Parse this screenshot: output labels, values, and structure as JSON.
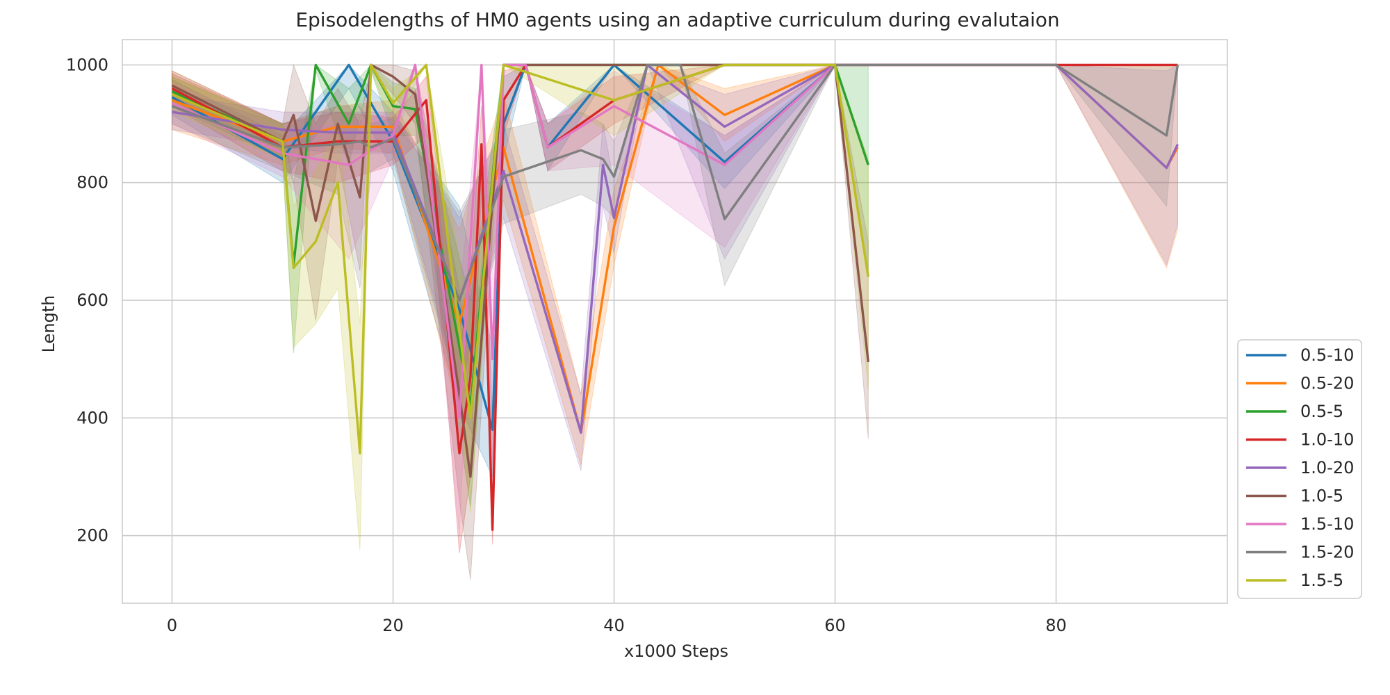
{
  "chart_data": {
    "type": "line",
    "title": "Episodelengths of HM0 agents using an adaptive curriculum during evalutaion",
    "xlabel": "x1000 Steps",
    "ylabel": "Length",
    "xlim": [
      -4.5,
      95.5
    ],
    "ylim": [
      85,
      1043
    ],
    "xticks": [
      0,
      20,
      40,
      60,
      80
    ],
    "yticks": [
      200,
      400,
      600,
      800,
      1000
    ],
    "grid": true,
    "legend_position": "lower-right outside",
    "series": [
      {
        "name": "0.5-10",
        "color": "#1f77b4",
        "points": [
          [
            0,
            945
          ],
          [
            10,
            840
          ],
          [
            16,
            1000
          ],
          [
            20,
            870
          ],
          [
            26,
            585
          ],
          [
            29,
            380
          ],
          [
            30,
            900
          ],
          [
            32,
            1000
          ],
          [
            34,
            860
          ],
          [
            40,
            1000
          ],
          [
            50,
            835
          ],
          [
            60,
            1000
          ]
        ],
        "band": [
          [
            0,
            975,
            915
          ],
          [
            10,
            880,
            800
          ],
          [
            16,
            1000,
            960
          ],
          [
            20,
            920,
            820
          ],
          [
            26,
            760,
            420
          ],
          [
            29,
            520,
            300
          ],
          [
            30,
            980,
            840
          ],
          [
            32,
            1000,
            1000
          ],
          [
            34,
            900,
            820
          ],
          [
            40,
            1000,
            1000
          ],
          [
            50,
            880,
            790
          ],
          [
            60,
            1000,
            1000
          ]
        ]
      },
      {
        "name": "0.5-20",
        "color": "#ff7f0e",
        "points": [
          [
            0,
            940
          ],
          [
            10,
            870
          ],
          [
            15,
            895
          ],
          [
            20,
            895
          ],
          [
            26,
            560
          ],
          [
            30,
            860
          ],
          [
            37,
            375
          ],
          [
            40,
            725
          ],
          [
            44,
            1000
          ],
          [
            50,
            915
          ],
          [
            60,
            1000
          ],
          [
            70,
            1000
          ],
          [
            80,
            1000
          ],
          [
            90,
            825
          ],
          [
            91,
            860
          ]
        ],
        "band": [
          [
            0,
            990,
            890
          ],
          [
            10,
            900,
            830
          ],
          [
            15,
            930,
            860
          ],
          [
            20,
            940,
            850
          ],
          [
            26,
            720,
            400
          ],
          [
            30,
            950,
            770
          ],
          [
            37,
            440,
            320
          ],
          [
            40,
            790,
            660
          ],
          [
            44,
            1000,
            1000
          ],
          [
            50,
            960,
            870
          ],
          [
            60,
            1000,
            1000
          ],
          [
            70,
            1000,
            1000
          ],
          [
            80,
            1000,
            1000
          ],
          [
            90,
            1000,
            655
          ],
          [
            91,
            1000,
            720
          ]
        ]
      },
      {
        "name": "0.5-5",
        "color": "#2ca02c",
        "points": [
          [
            0,
            955
          ],
          [
            10,
            870
          ],
          [
            11,
            660
          ],
          [
            13,
            1000
          ],
          [
            16,
            900
          ],
          [
            18,
            1000
          ],
          [
            20,
            930
          ],
          [
            22,
            925
          ],
          [
            27,
            420
          ],
          [
            30,
            1000
          ],
          [
            60,
            1000
          ],
          [
            63,
            830
          ]
        ],
        "band": [
          [
            0,
            980,
            930
          ],
          [
            10,
            900,
            840
          ],
          [
            11,
            800,
            510
          ],
          [
            13,
            1000,
            990
          ],
          [
            16,
            960,
            830
          ],
          [
            18,
            1000,
            990
          ],
          [
            20,
            970,
            880
          ],
          [
            22,
            960,
            880
          ],
          [
            27,
            600,
            250
          ],
          [
            30,
            1000,
            1000
          ],
          [
            60,
            1000,
            1000
          ],
          [
            63,
            1000,
            640
          ]
        ]
      },
      {
        "name": "1.0-10",
        "color": "#d62728",
        "points": [
          [
            0,
            960
          ],
          [
            10,
            860
          ],
          [
            15,
            870
          ],
          [
            20,
            870
          ],
          [
            23,
            940
          ],
          [
            26,
            340
          ],
          [
            27,
            470
          ],
          [
            28,
            865
          ],
          [
            29,
            210
          ],
          [
            30,
            940
          ],
          [
            32,
            1000
          ],
          [
            34,
            860
          ],
          [
            40,
            940
          ],
          [
            50,
            1000
          ],
          [
            60,
            1000
          ],
          [
            70,
            1000
          ],
          [
            80,
            1000
          ],
          [
            91,
            1000
          ]
        ],
        "band": [
          [
            0,
            985,
            930
          ],
          [
            10,
            900,
            820
          ],
          [
            15,
            920,
            800
          ],
          [
            20,
            910,
            830
          ],
          [
            23,
            980,
            880
          ],
          [
            26,
            510,
            170
          ],
          [
            27,
            640,
            300
          ],
          [
            28,
            930,
            790
          ],
          [
            29,
            390,
            185
          ],
          [
            30,
            990,
            880
          ],
          [
            32,
            1000,
            1000
          ],
          [
            34,
            900,
            820
          ],
          [
            40,
            980,
            900
          ],
          [
            50,
            1000,
            1000
          ],
          [
            60,
            1000,
            1000
          ],
          [
            70,
            1000,
            1000
          ],
          [
            80,
            1000,
            1000
          ],
          [
            91,
            1000,
            1000
          ]
        ]
      },
      {
        "name": "1.0-20",
        "color": "#9467bd",
        "points": [
          [
            0,
            920
          ],
          [
            10,
            890
          ],
          [
            15,
            885
          ],
          [
            20,
            885
          ],
          [
            26,
            600
          ],
          [
            30,
            820
          ],
          [
            37,
            375
          ],
          [
            39,
            830
          ],
          [
            40,
            740
          ],
          [
            43,
            1000
          ],
          [
            50,
            895
          ],
          [
            60,
            1000
          ],
          [
            70,
            1000
          ],
          [
            80,
            1000
          ],
          [
            90,
            825
          ],
          [
            91,
            865
          ]
        ],
        "band": [
          [
            0,
            950,
            890
          ],
          [
            10,
            920,
            860
          ],
          [
            15,
            920,
            850
          ],
          [
            20,
            920,
            850
          ],
          [
            26,
            740,
            450
          ],
          [
            30,
            900,
            740
          ],
          [
            37,
            440,
            310
          ],
          [
            39,
            900,
            760
          ],
          [
            40,
            800,
            680
          ],
          [
            43,
            1000,
            1000
          ],
          [
            50,
            950,
            670
          ],
          [
            60,
            1000,
            1000
          ],
          [
            70,
            1000,
            1000
          ],
          [
            80,
            1000,
            1000
          ],
          [
            90,
            990,
            660
          ],
          [
            91,
            1000,
            730
          ]
        ]
      },
      {
        "name": "1.0-5",
        "color": "#8c564b",
        "points": [
          [
            0,
            965
          ],
          [
            10,
            870
          ],
          [
            11,
            915
          ],
          [
            13,
            735
          ],
          [
            15,
            900
          ],
          [
            17,
            775
          ],
          [
            18,
            1000
          ],
          [
            20,
            980
          ],
          [
            22,
            950
          ],
          [
            26,
            440
          ],
          [
            27,
            300
          ],
          [
            30,
            1000
          ],
          [
            60,
            1000
          ],
          [
            63,
            495
          ]
        ],
        "band": [
          [
            0,
            990,
            940
          ],
          [
            10,
            900,
            840
          ],
          [
            11,
            1000,
            800
          ],
          [
            13,
            900,
            565
          ],
          [
            15,
            960,
            840
          ],
          [
            17,
            900,
            650
          ],
          [
            18,
            1000,
            990
          ],
          [
            20,
            1000,
            950
          ],
          [
            22,
            990,
            900
          ],
          [
            26,
            620,
            260
          ],
          [
            27,
            480,
            125
          ],
          [
            30,
            1000,
            1000
          ],
          [
            60,
            1000,
            1000
          ],
          [
            63,
            700,
            365
          ]
        ]
      },
      {
        "name": "1.5-10",
        "color": "#e377c2",
        "points": [
          [
            0,
            935
          ],
          [
            10,
            850
          ],
          [
            16,
            830
          ],
          [
            20,
            880
          ],
          [
            22,
            1000
          ],
          [
            26,
            400
          ],
          [
            28,
            1000
          ],
          [
            29,
            500
          ],
          [
            30,
            1000
          ],
          [
            32,
            1000
          ],
          [
            34,
            860
          ],
          [
            40,
            930
          ],
          [
            50,
            830
          ],
          [
            60,
            1000
          ]
        ],
        "band": [
          [
            0,
            970,
            900
          ],
          [
            10,
            890,
            810
          ],
          [
            16,
            900,
            670
          ],
          [
            20,
            920,
            840
          ],
          [
            22,
            1000,
            1000
          ],
          [
            26,
            600,
            200
          ],
          [
            28,
            1000,
            1000
          ],
          [
            29,
            680,
            320
          ],
          [
            30,
            1000,
            1000
          ],
          [
            32,
            1000,
            1000
          ],
          [
            34,
            900,
            820
          ],
          [
            40,
            990,
            830
          ],
          [
            50,
            880,
            690
          ],
          [
            60,
            1000,
            1000
          ]
        ]
      },
      {
        "name": "1.5-20",
        "color": "#7f7f7f",
        "points": [
          [
            0,
            930
          ],
          [
            10,
            860
          ],
          [
            15,
            865
          ],
          [
            17,
            870
          ],
          [
            18,
            860
          ],
          [
            20,
            875
          ],
          [
            26,
            600
          ],
          [
            30,
            810
          ],
          [
            37,
            855
          ],
          [
            39,
            840
          ],
          [
            40,
            810
          ],
          [
            43,
            1000
          ],
          [
            46,
            1000
          ],
          [
            50,
            738
          ],
          [
            60,
            1000
          ],
          [
            70,
            1000
          ],
          [
            80,
            1000
          ],
          [
            90,
            880
          ],
          [
            91,
            1000
          ]
        ],
        "band": [
          [
            0,
            960,
            900
          ],
          [
            10,
            900,
            820
          ],
          [
            15,
            930,
            780
          ],
          [
            17,
            930,
            620
          ],
          [
            18,
            900,
            820
          ],
          [
            20,
            910,
            840
          ],
          [
            26,
            750,
            440
          ],
          [
            30,
            890,
            730
          ],
          [
            37,
            920,
            780
          ],
          [
            39,
            900,
            760
          ],
          [
            40,
            870,
            740
          ],
          [
            43,
            1000,
            1000
          ],
          [
            46,
            1000,
            1000
          ],
          [
            50,
            850,
            625
          ],
          [
            60,
            1000,
            1000
          ],
          [
            70,
            1000,
            1000
          ],
          [
            80,
            1000,
            1000
          ],
          [
            90,
            1000,
            760
          ],
          [
            91,
            1000,
            1000
          ]
        ]
      },
      {
        "name": "1.5-5",
        "color": "#bcbd22",
        "points": [
          [
            0,
            950
          ],
          [
            10,
            870
          ],
          [
            11,
            655
          ],
          [
            13,
            700
          ],
          [
            15,
            800
          ],
          [
            17,
            340
          ],
          [
            18,
            1000
          ],
          [
            20,
            935
          ],
          [
            23,
            1000
          ],
          [
            27,
            400
          ],
          [
            30,
            1000
          ],
          [
            40,
            940
          ],
          [
            50,
            1000
          ],
          [
            60,
            1000
          ],
          [
            63,
            640
          ]
        ],
        "band": [
          [
            0,
            980,
            920
          ],
          [
            10,
            900,
            840
          ],
          [
            11,
            760,
            520
          ],
          [
            13,
            820,
            560
          ],
          [
            15,
            900,
            620
          ],
          [
            17,
            560,
            175
          ],
          [
            18,
            1000,
            990
          ],
          [
            20,
            960,
            900
          ],
          [
            23,
            1000,
            1000
          ],
          [
            27,
            560,
            240
          ],
          [
            30,
            1000,
            1000
          ],
          [
            40,
            1000,
            880
          ],
          [
            50,
            1000,
            1000
          ],
          [
            60,
            1000,
            1000
          ],
          [
            63,
            840,
            450
          ]
        ]
      }
    ]
  }
}
